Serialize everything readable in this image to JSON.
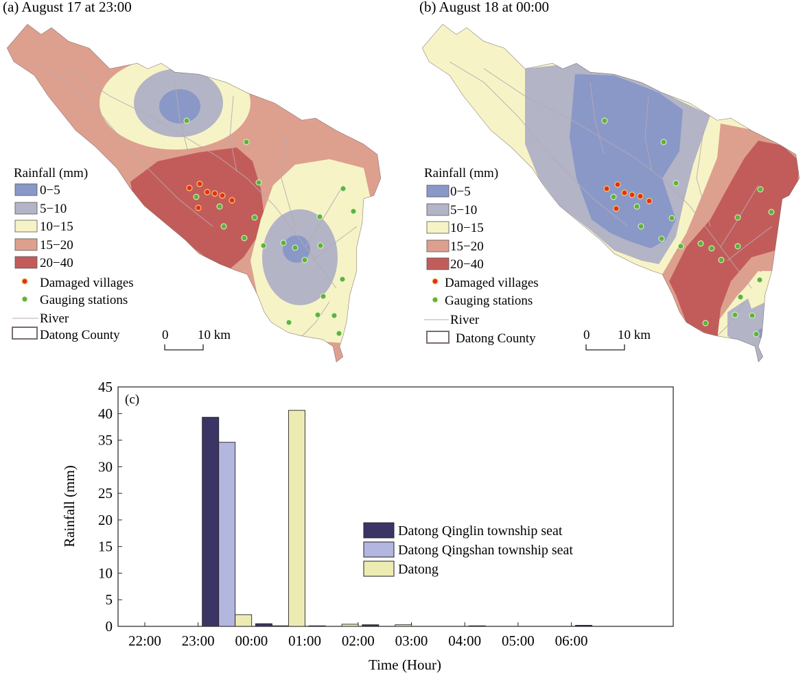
{
  "colors": {
    "c_0_5": "#8a98c8",
    "c_5_10": "#b3b4c6",
    "c_10_15": "#f6f4c6",
    "c_15_20": "#dea08e",
    "c_20_40": "#c25c5a",
    "damaged": "#e2301b",
    "gauging": "#5fb437",
    "river": "#b7a9b2",
    "boundary": "#7a6a72",
    "series1": "#3b3566",
    "series2": "#b3b6df",
    "series3": "#ecebb2"
  },
  "panel_a": {
    "title": "(a) August 17 at 23:00",
    "legend": {
      "heading": "Rainfall (mm)",
      "bins": [
        "0−5",
        "5−10",
        "10−15",
        "15−20",
        "20−40"
      ],
      "damaged_label": "Damaged villages",
      "gauging_label": "Gauging stations",
      "river_label": "River",
      "county_label": "Datong County"
    },
    "scale": {
      "zero": "0",
      "end": "10 km"
    }
  },
  "panel_b": {
    "title": "(b) August 18 at 00:00",
    "legend": {
      "heading": "Rainfall (mm)",
      "bins": [
        "0−5",
        "5−10",
        "10−15",
        "15−20",
        "20−40"
      ],
      "damaged_label": "Damaged villages",
      "gauging_label": "Gauging stations",
      "river_label": "River",
      "county_label": "Datong County"
    },
    "scale": {
      "zero": "0",
      "end": "10 km"
    }
  },
  "chart_data": {
    "type": "bar",
    "panel_label": "(c)",
    "xlabel": "Time (Hour)",
    "ylabel": "Rainfall (mm)",
    "ylim": [
      0,
      45
    ],
    "yticks": [
      0,
      5,
      10,
      15,
      20,
      25,
      30,
      35,
      40,
      45
    ],
    "categories": [
      "22:00",
      "23:00",
      "00:00",
      "01:00",
      "02:00",
      "03:00",
      "04:00",
      "05:00",
      "06:00"
    ],
    "series": [
      {
        "name": "Datong Qinglin township seat",
        "values": [
          0,
          39.3,
          0.5,
          0.1,
          0.3,
          0,
          0.1,
          0,
          0.2
        ]
      },
      {
        "name": "Datong Qingshan township seat",
        "values": [
          0,
          34.6,
          0.1,
          0,
          0,
          0,
          0,
          0,
          0
        ]
      },
      {
        "name": "Datong",
        "values": [
          0,
          2.2,
          40.6,
          0.4,
          0.3,
          0,
          0,
          0,
          0
        ]
      }
    ],
    "legend_position": "center-right",
    "grid": false
  }
}
